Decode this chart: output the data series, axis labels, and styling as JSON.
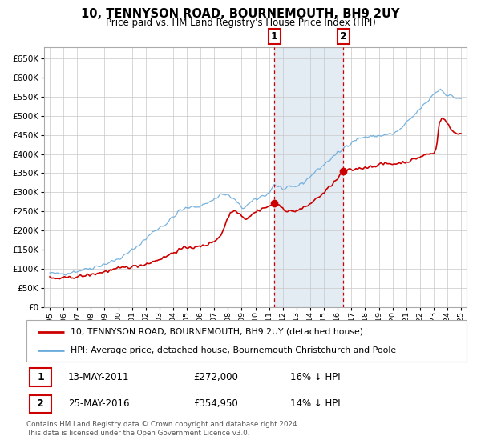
{
  "title": "10, TENNYSON ROAD, BOURNEMOUTH, BH9 2UY",
  "subtitle": "Price paid vs. HM Land Registry's House Price Index (HPI)",
  "xlim": [
    1994.6,
    2025.4
  ],
  "ylim": [
    0,
    680000
  ],
  "yticks": [
    0,
    50000,
    100000,
    150000,
    200000,
    250000,
    300000,
    350000,
    400000,
    450000,
    500000,
    550000,
    600000,
    650000
  ],
  "ytick_labels": [
    "£0",
    "£50K",
    "£100K",
    "£150K",
    "£200K",
    "£250K",
    "£300K",
    "£350K",
    "£400K",
    "£450K",
    "£500K",
    "£550K",
    "£600K",
    "£650K"
  ],
  "hpi_color": "#6aabdc",
  "price_color": "#cc0000",
  "marker_color": "#cc0000",
  "vline_color": "#cc0000",
  "shade_color": "#dce6f1",
  "transaction1": {
    "date_num": 2011.37,
    "price": 272000,
    "label": "1",
    "date_str": "13-MAY-2011",
    "price_str": "£272,000",
    "note": "16% ↓ HPI"
  },
  "transaction2": {
    "date_num": 2016.4,
    "price": 354950,
    "label": "2",
    "date_str": "25-MAY-2016",
    "price_str": "£354,950",
    "note": "14% ↓ HPI"
  },
  "legend_line1": "10, TENNYSON ROAD, BOURNEMOUTH, BH9 2UY (detached house)",
  "legend_line2": "HPI: Average price, detached house, Bournemouth Christchurch and Poole",
  "footnote": "Contains HM Land Registry data © Crown copyright and database right 2024.\nThis data is licensed under the Open Government Licence v3.0.",
  "background_color": "#ffffff",
  "plot_bg_color": "#ffffff",
  "grid_color": "#c8c8c8"
}
